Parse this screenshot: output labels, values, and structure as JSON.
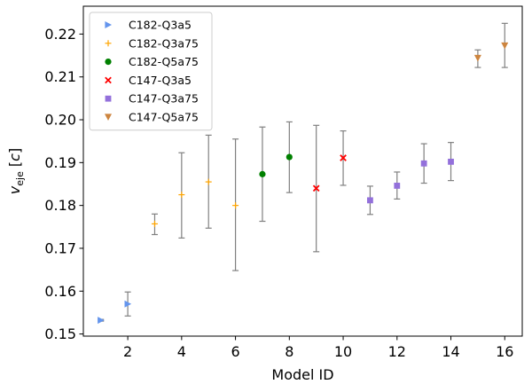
{
  "chart_data": {
    "type": "scatter",
    "title": "",
    "xlabel": "Model ID",
    "ylabel": {
      "base": "v",
      "sub": "eje",
      "unit": "c"
    },
    "xlim": [
      0.35,
      16.65
    ],
    "ylim": [
      0.1495,
      0.2265
    ],
    "xticks": [
      2,
      4,
      6,
      8,
      10,
      12,
      14,
      16
    ],
    "yticks": [
      0.15,
      0.16,
      0.17,
      0.18,
      0.19,
      0.2,
      0.21,
      0.22
    ],
    "ytick_labels": [
      "0.15",
      "0.16",
      "0.17",
      "0.18",
      "0.19",
      "0.20",
      "0.21",
      "0.22"
    ],
    "legend_position": "top-left",
    "errorbar_color": "#808080",
    "series": [
      {
        "name": "C182-Q3a5",
        "marker": "triangle-right",
        "color": "#6495ED",
        "points": [
          {
            "x": 1,
            "y": 0.1532,
            "lo": 0.153,
            "hi": 0.1534
          },
          {
            "x": 2,
            "y": 0.157,
            "lo": 0.1542,
            "hi": 0.1598
          }
        ]
      },
      {
        "name": "C182-Q3a75",
        "marker": "plus",
        "color": "#FFA500",
        "points": [
          {
            "x": 3,
            "y": 0.1757,
            "lo": 0.1732,
            "hi": 0.178
          },
          {
            "x": 4,
            "y": 0.1825,
            "lo": 0.1724,
            "hi": 0.1923
          },
          {
            "x": 5,
            "y": 0.1855,
            "lo": 0.1747,
            "hi": 0.1964
          },
          {
            "x": 6,
            "y": 0.18,
            "lo": 0.1648,
            "hi": 0.1955
          }
        ]
      },
      {
        "name": "C182-Q5a75",
        "marker": "circle",
        "color": "#008000",
        "points": [
          {
            "x": 7,
            "y": 0.1873,
            "lo": 0.1763,
            "hi": 0.1983
          },
          {
            "x": 8,
            "y": 0.1913,
            "lo": 0.183,
            "hi": 0.1995
          }
        ]
      },
      {
        "name": "C147-Q3a5",
        "marker": "x",
        "color": "#FF0000",
        "points": [
          {
            "x": 9,
            "y": 0.184,
            "lo": 0.1692,
            "hi": 0.1987
          },
          {
            "x": 10,
            "y": 0.1911,
            "lo": 0.1847,
            "hi": 0.1974
          }
        ]
      },
      {
        "name": "C147-Q3a75",
        "marker": "square",
        "color": "#9370DB",
        "points": [
          {
            "x": 11,
            "y": 0.1812,
            "lo": 0.1779,
            "hi": 0.1845
          },
          {
            "x": 12,
            "y": 0.1846,
            "lo": 0.1815,
            "hi": 0.1878
          },
          {
            "x": 13,
            "y": 0.1898,
            "lo": 0.1852,
            "hi": 0.1944
          },
          {
            "x": 14,
            "y": 0.1902,
            "lo": 0.1858,
            "hi": 0.1947
          }
        ]
      },
      {
        "name": "C147-Q5a75",
        "marker": "triangle-down",
        "color": "#CD853F",
        "points": [
          {
            "x": 15,
            "y": 0.2144,
            "lo": 0.2122,
            "hi": 0.2163
          },
          {
            "x": 16,
            "y": 0.2173,
            "lo": 0.2122,
            "hi": 0.2225
          }
        ]
      }
    ]
  }
}
